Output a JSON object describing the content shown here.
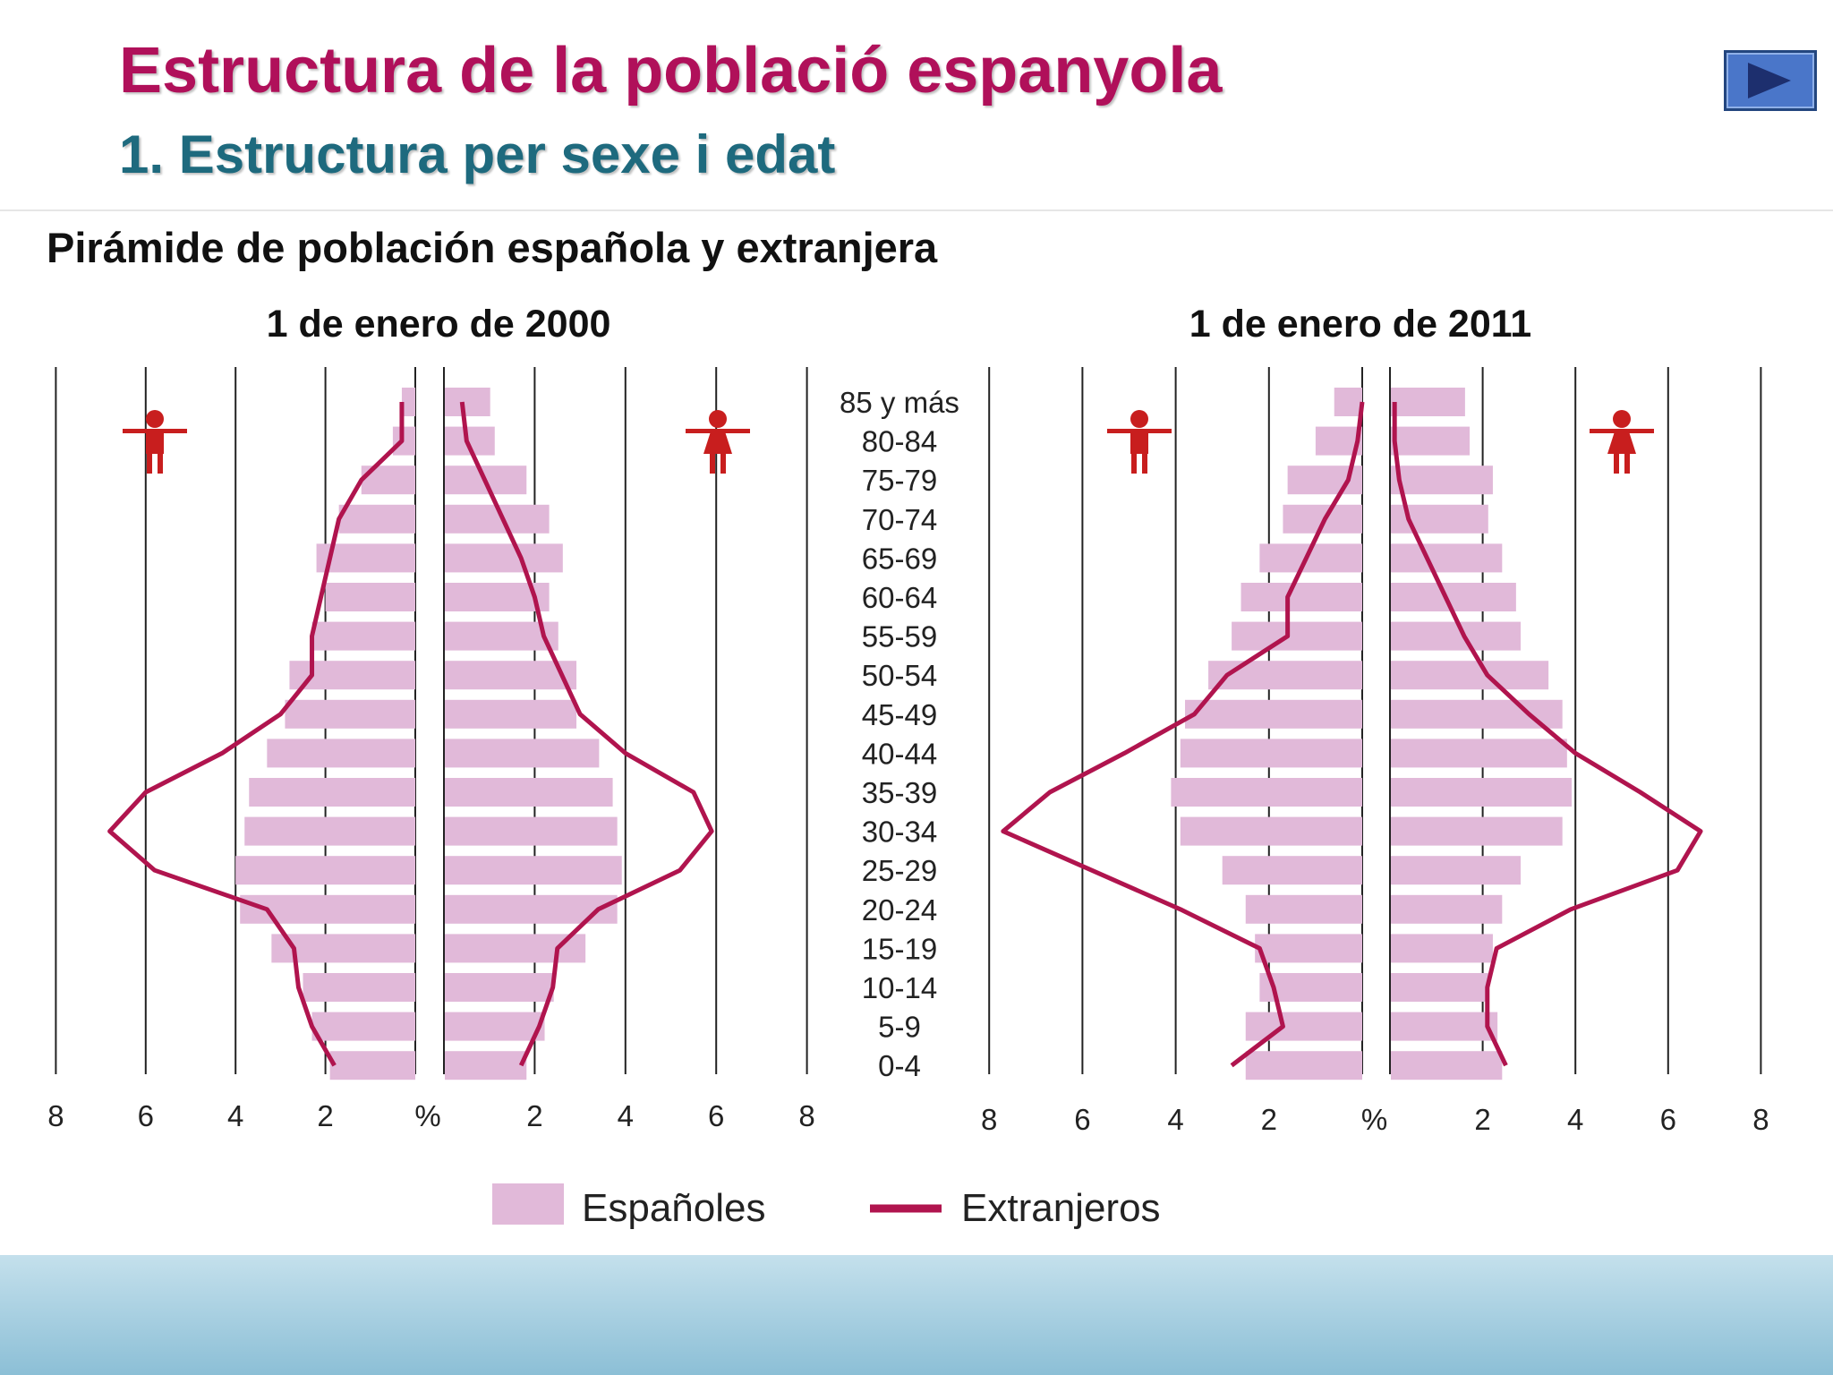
{
  "header": {
    "title": "Estructura de la població espanyola",
    "subtitle": "1. Estructura per sexe i edat"
  },
  "nav": {
    "next_icon": "play-triangle-icon"
  },
  "colors": {
    "bars": "#e1b9d9",
    "line": "#b0144e",
    "icon": "#c81e1e",
    "axis": "#222222"
  },
  "chart_data": {
    "type": "bar",
    "title": "Pirámide de población española y extranjera",
    "age_groups": [
      "85 y más",
      "80-84",
      "75-79",
      "70-74",
      "65-69",
      "60-64",
      "55-59",
      "50-54",
      "45-49",
      "40-44",
      "35-39",
      "30-34",
      "25-29",
      "20-24",
      "15-19",
      "10-14",
      "5-9",
      "0-4"
    ],
    "axis_ticks": [
      "8",
      "6",
      "4",
      "2",
      "%",
      "2",
      "4",
      "6",
      "8"
    ],
    "xlim": [
      0,
      8
    ],
    "unit": "%",
    "legend": {
      "bars": "Españoles",
      "line": "Extranjeros",
      "position": "bottom-center"
    },
    "panels": [
      {
        "title": "1 de enero de 2000",
        "espanoles_hombres": [
          0.3,
          0.5,
          1.2,
          1.7,
          2.2,
          2.0,
          2.3,
          2.8,
          2.9,
          3.3,
          3.7,
          3.8,
          4.0,
          3.9,
          3.2,
          2.5,
          2.3,
          1.9
        ],
        "espanoles_mujeres": [
          1.0,
          1.1,
          1.8,
          2.3,
          2.6,
          2.3,
          2.5,
          2.9,
          2.9,
          3.4,
          3.7,
          3.8,
          3.9,
          3.8,
          3.1,
          2.4,
          2.2,
          1.8
        ],
        "extranjeros_hombres": [
          0.3,
          0.3,
          1.2,
          1.7,
          1.9,
          2.1,
          2.3,
          2.3,
          3.0,
          4.3,
          6.0,
          6.8,
          5.8,
          3.3,
          2.7,
          2.6,
          2.3,
          1.8
        ],
        "extranjeros_mujeres": [
          0.4,
          0.5,
          0.9,
          1.3,
          1.7,
          2.0,
          2.2,
          2.6,
          3.0,
          4.0,
          5.5,
          5.9,
          5.2,
          3.4,
          2.5,
          2.4,
          2.1,
          1.7
        ]
      },
      {
        "title": "1 de enero de 2011",
        "espanoles_hombres": [
          0.6,
          1.0,
          1.6,
          1.7,
          2.2,
          2.6,
          2.8,
          3.3,
          3.8,
          3.9,
          4.1,
          3.9,
          3.0,
          2.5,
          2.3,
          2.2,
          2.5,
          2.5
        ],
        "espanoles_mujeres": [
          1.6,
          1.7,
          2.2,
          2.1,
          2.4,
          2.7,
          2.8,
          3.4,
          3.7,
          3.8,
          3.9,
          3.7,
          2.8,
          2.4,
          2.2,
          2.1,
          2.3,
          2.4
        ],
        "extranjeros_hombres": [
          0.0,
          0.1,
          0.3,
          0.8,
          1.2,
          1.6,
          1.6,
          2.9,
          3.6,
          5.1,
          6.7,
          7.7,
          5.8,
          3.9,
          2.2,
          1.9,
          1.7,
          2.8
        ],
        "extranjeros_mujeres": [
          0.1,
          0.1,
          0.2,
          0.4,
          0.8,
          1.2,
          1.6,
          2.1,
          3.0,
          4.0,
          5.4,
          6.7,
          6.2,
          3.9,
          2.3,
          2.1,
          2.1,
          2.5
        ]
      }
    ]
  }
}
